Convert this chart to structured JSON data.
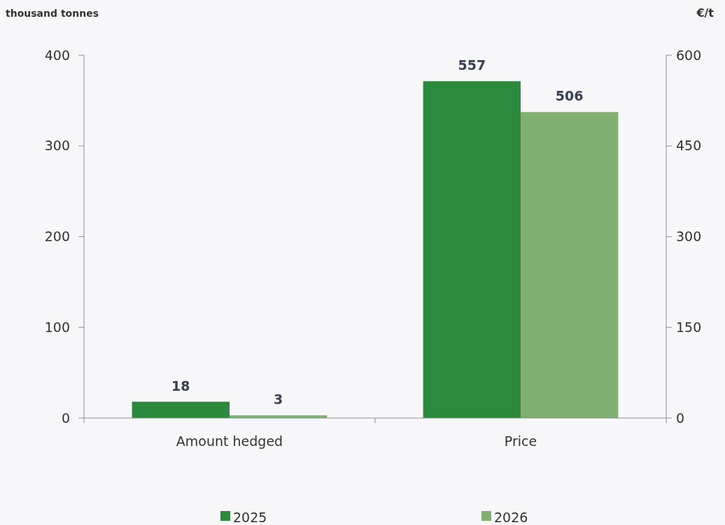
{
  "chart_data": {
    "type": "bar",
    "categories": [
      "Amount hedged",
      "Price"
    ],
    "series": [
      {
        "name": "2025",
        "color": "#2b8a3e",
        "values": [
          18,
          null
        ]
      },
      {
        "name": "2026",
        "color": "#7fb071",
        "values": [
          3,
          null
        ]
      },
      {
        "color": "#2b8a3e",
        "values": [
          null,
          557
        ],
        "axis": "y2"
      },
      {
        "color": "#7fb071",
        "values": [
          null,
          506
        ],
        "axis": "y2"
      }
    ],
    "ylabel": "thousand tonnes",
    "y2label": "€/t",
    "ylim": [
      0,
      400
    ],
    "yticks": [
      0,
      100,
      200,
      300,
      400
    ],
    "y2lim": [
      0,
      600
    ],
    "y2ticks": [
      0,
      150,
      300,
      450,
      600
    ],
    "data_labels": true,
    "legend": "bottom",
    "grid": false
  }
}
